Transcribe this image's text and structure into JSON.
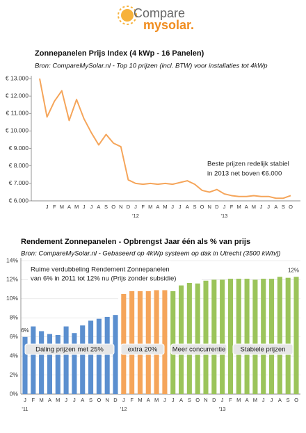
{
  "logo": {
    "part1": "Compare",
    "part2": "mysolar."
  },
  "chart_data": [
    {
      "type": "line",
      "title": "Zonnepanelen Prijs Index (4 kWp - 16 Panelen)",
      "subtitle": "Bron: CompareMySolar.nl - Top 10 prijzen (incl. BTW) voor installaties tot 4kWp",
      "categories": [
        null,
        "J",
        "F",
        "M",
        "A",
        "M",
        "J",
        "J",
        "A",
        "S",
        "O",
        "N",
        "D",
        "J",
        "F",
        "M",
        "A",
        "M",
        "J",
        "J",
        "A",
        "S",
        "O",
        "N",
        "D",
        "J",
        "F",
        "M",
        "A",
        "M",
        "J",
        "J",
        "A",
        "S",
        "O"
      ],
      "years": [
        null,
        null,
        null,
        null,
        null,
        null,
        null,
        null,
        null,
        null,
        null,
        null,
        null,
        "'12",
        null,
        null,
        null,
        null,
        null,
        null,
        null,
        null,
        null,
        null,
        null,
        "'13",
        null,
        null,
        null,
        null,
        null,
        null,
        null,
        null,
        null
      ],
      "values": [
        13000,
        10800,
        11700,
        12300,
        10600,
        11800,
        10700,
        9900,
        9200,
        9800,
        9300,
        9100,
        7200,
        7000,
        6950,
        7000,
        6950,
        7000,
        6950,
        7050,
        7150,
        6950,
        6600,
        6500,
        6650,
        6400,
        6300,
        6250,
        6250,
        6300,
        6250,
        6250,
        6150,
        6150,
        6300
      ],
      "color": "#f5a55a",
      "ylim": [
        6000,
        13000
      ],
      "yticks": [
        {
          "value": 6000,
          "label": "€ 6.000"
        },
        {
          "value": 7000,
          "label": "€ 7.000"
        },
        {
          "value": 8000,
          "label": "€ 8.000"
        },
        {
          "value": 9000,
          "label": "€ 9.000"
        },
        {
          "value": 10000,
          "label": "€ 10.000"
        },
        {
          "value": 11000,
          "label": "€ 11.000"
        },
        {
          "value": 12000,
          "label": "€ 12.000"
        },
        {
          "value": 13000,
          "label": "€ 13.000"
        }
      ],
      "grid": false,
      "annotations": [
        "Beste prijzen redelijk stabiel",
        "in 2013 net boven €6.000"
      ]
    },
    {
      "type": "bar",
      "title": "Rendement Zonnepanelen - Opbrengst Jaar één als % van prijs",
      "subtitle": "Bron: CompareMySolar.nl - Gebaseerd op 4kWp systeem op dak in Utrecht  (3500 kWh/j)",
      "categories": [
        "J",
        "F",
        "M",
        "A",
        "M",
        "J",
        "J",
        "A",
        "S",
        "O",
        "N",
        "D",
        "J",
        "F",
        "M",
        "A",
        "M",
        "J",
        "J",
        "A",
        "S",
        "O",
        "N",
        "D",
        "J",
        "F",
        "M",
        "A",
        "M",
        "J",
        "J",
        "A",
        "S",
        "O"
      ],
      "years": [
        "'11",
        null,
        null,
        null,
        null,
        null,
        null,
        null,
        null,
        null,
        null,
        null,
        "'12",
        null,
        null,
        null,
        null,
        null,
        null,
        null,
        null,
        null,
        null,
        null,
        "'13",
        null,
        null,
        null,
        null,
        null,
        null,
        null,
        null,
        null
      ],
      "values": [
        6.0,
        7.1,
        6.6,
        6.3,
        6.2,
        7.1,
        6.4,
        7.2,
        7.7,
        7.9,
        8.1,
        8.3,
        10.5,
        10.8,
        10.8,
        10.8,
        10.9,
        10.9,
        10.8,
        11.4,
        11.7,
        11.6,
        11.9,
        12.0,
        12.0,
        12.1,
        12.1,
        12.1,
        12.0,
        12.1,
        12.1,
        12.3,
        12.2,
        12.3
      ],
      "value_labels": [
        "6%",
        null,
        null,
        null,
        null,
        null,
        null,
        null,
        null,
        null,
        null,
        null,
        null,
        null,
        null,
        null,
        null,
        null,
        null,
        null,
        null,
        null,
        null,
        null,
        null,
        null,
        null,
        null,
        null,
        null,
        null,
        null,
        null,
        "12%"
      ],
      "colors": [
        "#5b8fcf",
        "#5b8fcf",
        "#5b8fcf",
        "#5b8fcf",
        "#5b8fcf",
        "#5b8fcf",
        "#5b8fcf",
        "#5b8fcf",
        "#5b8fcf",
        "#5b8fcf",
        "#5b8fcf",
        "#5b8fcf",
        "#f5a55a",
        "#f5a55a",
        "#f5a55a",
        "#f5a55a",
        "#f5a55a",
        "#f5a55a",
        "#9bc45a",
        "#9bc45a",
        "#9bc45a",
        "#9bc45a",
        "#9bc45a",
        "#9bc45a",
        "#9bc45a",
        "#9bc45a",
        "#9bc45a",
        "#9bc45a",
        "#9bc45a",
        "#9bc45a",
        "#9bc45a",
        "#9bc45a",
        "#9bc45a",
        "#9bc45a"
      ],
      "ylim": [
        0,
        14
      ],
      "yticks": [
        {
          "value": 0,
          "label": "0%"
        },
        {
          "value": 2,
          "label": "2%"
        },
        {
          "value": 4,
          "label": "4%"
        },
        {
          "value": 6,
          "label": "6%"
        },
        {
          "value": 8,
          "label": "8%"
        },
        {
          "value": 10,
          "label": "10%"
        },
        {
          "value": 12,
          "label": "12%"
        },
        {
          "value": 14,
          "label": "14%"
        }
      ],
      "grid": true,
      "annotations": [
        "Ruime verdubbeling Rendement Zonnepanelen",
        "van 6% in 2011 tot 12% nu (Prijs zonder subsidie)",
        "Daling prijzen met 25%",
        "extra 20%",
        "Meer concurrentie",
        "Stabiele prijzen"
      ]
    }
  ]
}
